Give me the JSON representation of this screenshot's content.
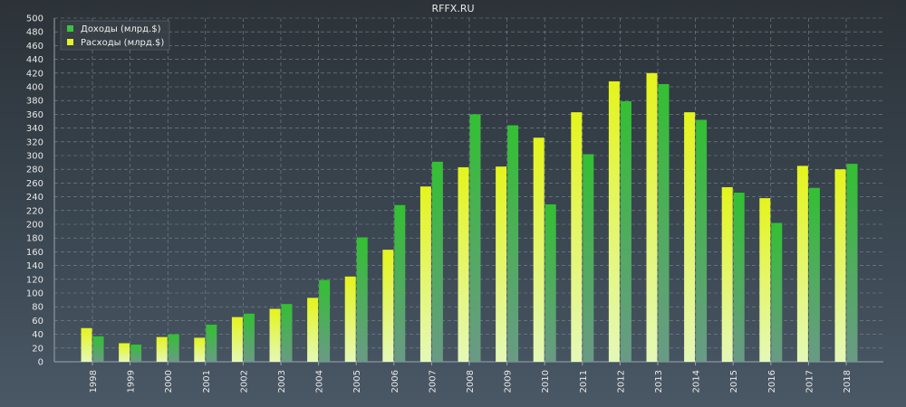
{
  "chart_data": {
    "type": "bar",
    "title": "RFFX.RU",
    "xlabel": "",
    "ylabel": "",
    "ylim": [
      0,
      500
    ],
    "yticks": [
      0,
      20,
      40,
      60,
      80,
      100,
      120,
      140,
      160,
      180,
      200,
      220,
      240,
      260,
      280,
      300,
      320,
      340,
      360,
      380,
      400,
      420,
      440,
      460,
      480,
      500
    ],
    "grid": true,
    "legend_position": "top-left",
    "categories": [
      "1998",
      "1999",
      "2000",
      "2001",
      "2002",
      "2003",
      "2004",
      "2005",
      "2006",
      "2007",
      "2008",
      "2009",
      "2010",
      "2011",
      "2012",
      "2013",
      "2014",
      "2015",
      "2016",
      "2017",
      "2018"
    ],
    "series": [
      {
        "name": "Доходы (млрд.$)",
        "color": "#3cc23c",
        "values": [
          37,
          25,
          40,
          54,
          70,
          84,
          119,
          181,
          228,
          291,
          360,
          344,
          229,
          302,
          379,
          404,
          352,
          246,
          202,
          253,
          288
        ]
      },
      {
        "name": "Расходы (млрд.$)",
        "color": "#e6f22a",
        "values": [
          49,
          27,
          36,
          35,
          65,
          77,
          93,
          124,
          163,
          255,
          283,
          284,
          326,
          363,
          408,
          420,
          363,
          254,
          238,
          285,
          280
        ]
      }
    ]
  }
}
